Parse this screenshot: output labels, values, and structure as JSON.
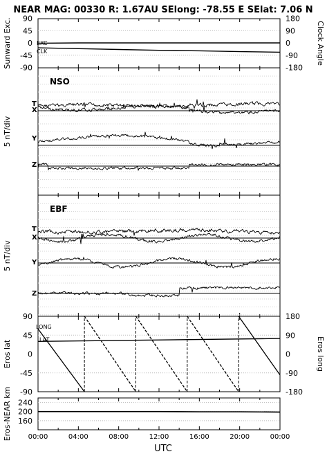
{
  "title": "NEAR MAG: 00330  R: 1.67AU  SElong:  -78.55 E  SElat:    7.06 N",
  "xlabel": "UTC",
  "x_ticks": [
    "00:00",
    "04:00",
    "08:00",
    "12:00",
    "16:00",
    "20:00",
    "00:00"
  ],
  "chart_data": [
    {
      "type": "line",
      "panel": "sunward-clock",
      "ylabel_left": "Sunward Exc.",
      "ylabel_right": "Clock Angle",
      "yticks_left": [
        "90",
        "45",
        "0",
        "-45",
        "-90"
      ],
      "yticks_right": [
        "180",
        "90",
        "0",
        "-90",
        "-180"
      ],
      "ylim": [
        -90,
        90
      ],
      "annotations": [
        "EXC",
        "CLK"
      ],
      "series": [
        {
          "name": "EXC",
          "x_hours": [
            0,
            4,
            8,
            12,
            16,
            20,
            24
          ],
          "values": [
            -1,
            0,
            0,
            0,
            0,
            0,
            0
          ]
        },
        {
          "name": "CLK",
          "x_hours": [
            0,
            4,
            8,
            12,
            16,
            20,
            24
          ],
          "values": [
            -18,
            -21,
            -24,
            -27,
            -29,
            -32,
            -34
          ]
        }
      ]
    },
    {
      "type": "line",
      "panel": "nso",
      "label": "NSO",
      "ylabel": "5 nT/div",
      "trace_labels": [
        "T",
        "X",
        "Y",
        "Z"
      ],
      "baselines": [
        "X",
        "Y",
        "Z"
      ]
    },
    {
      "type": "line",
      "panel": "ebf",
      "label": "EBF",
      "ylabel": "5 nT/div",
      "trace_labels": [
        "T",
        "X",
        "Y",
        "Z"
      ],
      "baselines": [
        "X",
        "Y",
        "Z"
      ]
    },
    {
      "type": "line",
      "panel": "eros-lat-long",
      "ylabel_left": "Eros lat",
      "ylabel_right": "Eros long",
      "yticks_left": [
        "90",
        "45",
        "0",
        "-45",
        "-90"
      ],
      "yticks_right": [
        "180",
        "90",
        "0",
        "-90",
        "-180"
      ],
      "ylim": [
        -90,
        90
      ],
      "annotations": [
        "LONG",
        "LAT"
      ],
      "series": [
        {
          "name": "LAT",
          "x_hours": [
            0,
            24
          ],
          "values": [
            30,
            37
          ]
        },
        {
          "name": "LONG",
          "x_hours": [
            0,
            4.6,
            9.7,
            14.8,
            19.9,
            24
          ],
          "reset_hours": [
            4.6,
            9.7,
            14.8,
            19.9
          ],
          "period_hours": 5.1,
          "range": [
            -180,
            180
          ],
          "start": 120,
          "end": -100
        }
      ]
    },
    {
      "type": "line",
      "panel": "range",
      "ylabel": "Eros-NEAR km",
      "yticks": [
        "240",
        "200",
        "160"
      ],
      "ylim": [
        120,
        260
      ],
      "series": [
        {
          "name": "Eros-NEAR km",
          "x_hours": [
            0,
            4,
            8,
            12,
            16,
            20,
            24
          ],
          "values": [
            200,
            200,
            200,
            200,
            199,
            199,
            198
          ]
        }
      ]
    }
  ]
}
